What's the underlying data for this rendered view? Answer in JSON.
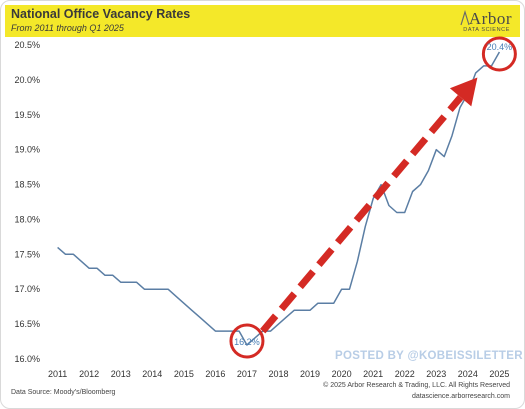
{
  "header": {
    "title": "National Office Vacancy Rates",
    "subtitle": "From 2011 through Q1 2025"
  },
  "logo": {
    "name": "Arbor",
    "tagline": "DATA SCIENCE"
  },
  "watermark": "POSTED BY @KOBEISSILETTER",
  "footer": {
    "source": "Data Source: Moody's/Bloomberg",
    "copyright": "© 2025 Arbor Research & Trading, LLC. All Rights Reserved",
    "website": "datascience.arborresearch.com"
  },
  "colors": {
    "header_bg": "#f4e829",
    "line": "#5b7ea4",
    "arrow": "#d42a24",
    "circle": "#d42a24",
    "data_label": "#4a7fb5",
    "watermark": "#b8cde6"
  },
  "chart_data": {
    "type": "line",
    "title": "National Office Vacancy Rates",
    "subtitle": "From 2011 through Q1 2025",
    "xlabel": "",
    "ylabel": "",
    "ylim": [
      16.0,
      20.5
    ],
    "xlim": [
      2010.6,
      2025.4
    ],
    "grid": false,
    "yticks": [
      "16.0%",
      "16.5%",
      "17.0%",
      "17.5%",
      "18.0%",
      "18.5%",
      "19.0%",
      "19.5%",
      "20.0%",
      "20.5%"
    ],
    "ytick_values": [
      16.0,
      16.5,
      17.0,
      17.5,
      18.0,
      18.5,
      19.0,
      19.5,
      20.0,
      20.5
    ],
    "xticks": [
      "2011",
      "2012",
      "2013",
      "2014",
      "2015",
      "2016",
      "2017",
      "2018",
      "2019",
      "2020",
      "2021",
      "2022",
      "2023",
      "2024",
      "2025"
    ],
    "xtick_values": [
      2011,
      2012,
      2013,
      2014,
      2015,
      2016,
      2017,
      2018,
      2019,
      2020,
      2021,
      2022,
      2023,
      2024,
      2025
    ],
    "series": [
      {
        "x": [
          2011,
          2011.25,
          2011.5,
          2011.75,
          2012,
          2012.25,
          2012.5,
          2012.75,
          2013,
          2013.25,
          2013.5,
          2013.75,
          2014,
          2014.25,
          2014.5,
          2014.75,
          2015,
          2015.25,
          2015.5,
          2015.75,
          2016,
          2016.25,
          2016.5,
          2016.75,
          2017,
          2017.25,
          2017.5,
          2017.75,
          2018,
          2018.25,
          2018.5,
          2018.75,
          2019,
          2019.25,
          2019.5,
          2019.75,
          2020,
          2020.25,
          2020.5,
          2020.75,
          2021,
          2021.25,
          2021.5,
          2021.75,
          2022,
          2022.25,
          2022.5,
          2022.75,
          2023,
          2023.25,
          2023.5,
          2023.75,
          2024,
          2024.25,
          2024.5,
          2024.75,
          2025
        ],
        "values": [
          17.6,
          17.5,
          17.5,
          17.4,
          17.3,
          17.3,
          17.2,
          17.2,
          17.1,
          17.1,
          17.1,
          17.0,
          17.0,
          17.0,
          17.0,
          16.9,
          16.8,
          16.7,
          16.6,
          16.5,
          16.4,
          16.4,
          16.4,
          16.4,
          16.2,
          16.3,
          16.4,
          16.4,
          16.5,
          16.6,
          16.7,
          16.7,
          16.7,
          16.8,
          16.8,
          16.8,
          17.0,
          17.0,
          17.4,
          17.9,
          18.3,
          18.5,
          18.2,
          18.1,
          18.1,
          18.4,
          18.5,
          18.7,
          19.0,
          18.9,
          19.2,
          19.6,
          19.8,
          20.1,
          20.2,
          20.2,
          20.4
        ]
      }
    ],
    "annotations": [
      {
        "text": "16.2%",
        "x": 2017,
        "y": 16.2,
        "circled": true
      },
      {
        "text": "20.4%",
        "x": 2025,
        "y": 20.4,
        "circled": true
      }
    ],
    "arrow": {
      "from": [
        2017.5,
        16.4
      ],
      "to": [
        2025,
        20.35
      ]
    }
  }
}
